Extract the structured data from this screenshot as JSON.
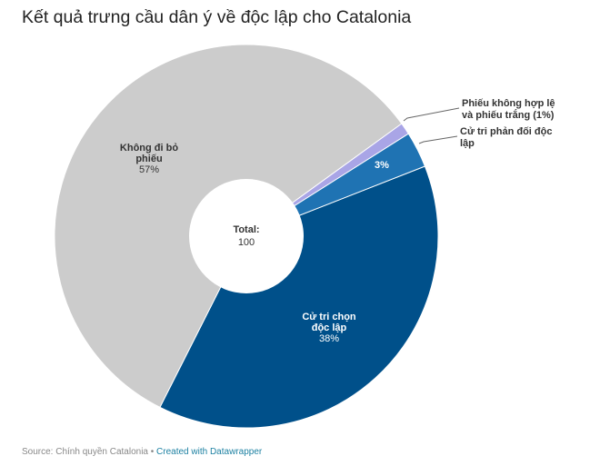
{
  "title": "Kết quả trưng cầu dân ý về độc lập cho Catalonia",
  "center_label": {
    "line1": "Total:",
    "line2": "100"
  },
  "footer": {
    "source": "Source: Chính quyền Catalonia",
    "separator": " • ",
    "credit": "Created with Datawrapper"
  },
  "labels": {
    "grey_l1": "Không đi bỏ",
    "grey_l2": "phiếu",
    "grey_v": "57%",
    "blue_l1": "Cử tri chọn",
    "blue_l2": "độc lập",
    "blue_v": "38%",
    "mid_v": "3%",
    "invalid_l1": "Phiếu không hợp lệ",
    "invalid_l2": "và phiếu trắng (1%)",
    "against_l1": "Cử tri phản đối độc",
    "against_l2": "lập"
  },
  "chart_data": {
    "type": "pie",
    "subtype": "donut",
    "title": "Kết quả trưng cầu dân ý về độc lập cho Catalonia",
    "categories": [
      "Cử tri chọn độc lập",
      "Không đi bỏ phiếu",
      "Phiếu không hợp lệ và phiếu trắng",
      "Cử tri phản đối độc lập"
    ],
    "values": [
      38,
      57,
      1,
      3
    ],
    "colors": [
      "#00508a",
      "#cccccc",
      "#a9a5e6",
      "#1f73b3"
    ],
    "total_label": "Total: 100",
    "source": "Chính quyền Catalonia"
  }
}
